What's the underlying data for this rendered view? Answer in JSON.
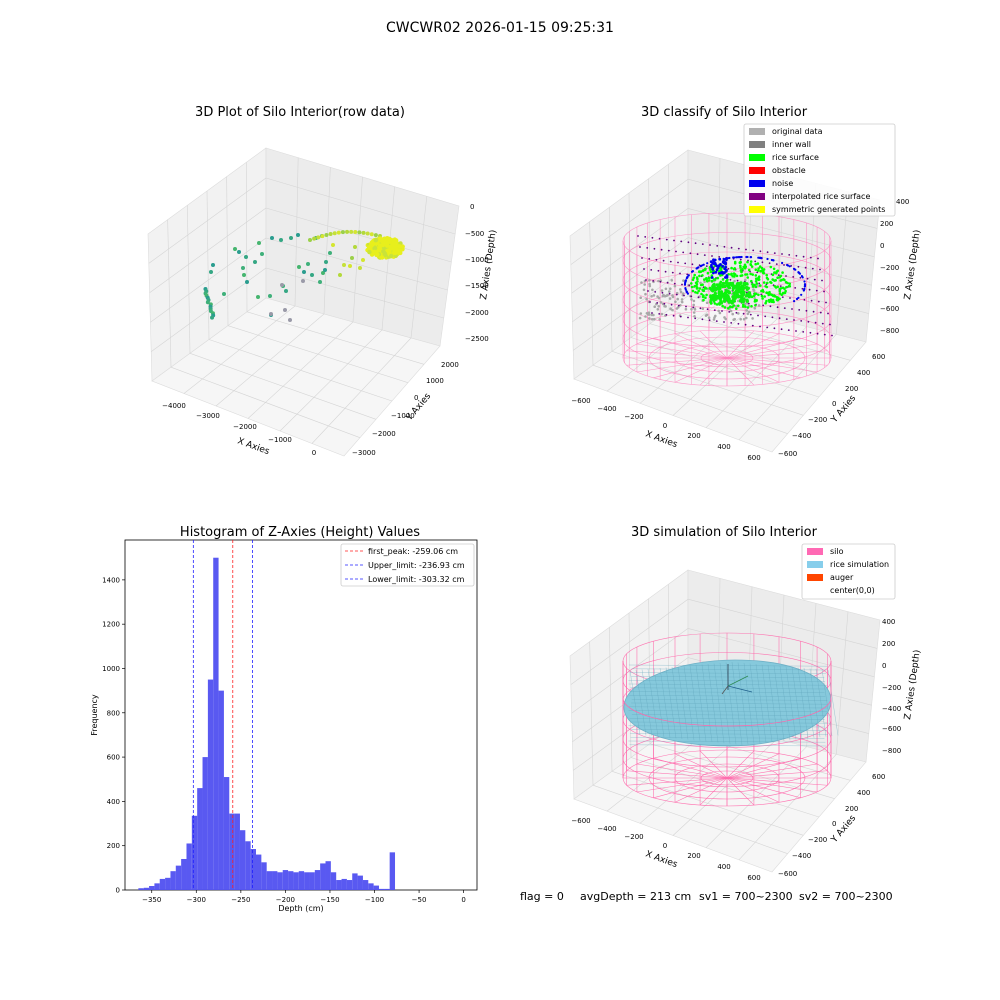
{
  "figure": {
    "suptitle": "CWCWR02 2026-01-15 09:25:31",
    "status_line": {
      "flag": "flag = 0",
      "avg_depth": "avgDepth = 213 cm",
      "sv1": "sv1 = 700~2300",
      "sv2": "sv2 = 700~2300"
    }
  },
  "colors": {
    "histogram_bar": "#5050f0",
    "first_peak_line": "#ff2020",
    "limit_line": "#2020ff",
    "silo_wire": "#ff66aa",
    "rice_surface": "#00ff00",
    "noise": "#0000ff",
    "rice_simulation": "#87cedd",
    "original_data": "#a8a8a8",
    "inner_wall": "#808080",
    "obstacle": "#ff0000",
    "interpolated": "#800080",
    "symmetric": "#ffff00",
    "auger": "#ff4500"
  },
  "chart_data": [
    {
      "type": "scatter",
      "subtype": "3d",
      "title": "3D Plot of Silo Interior(row data)",
      "xlabel": "X Axies",
      "ylabel": "Y Axies",
      "zlabel": "Z Axies (Depth)",
      "x_ticks": [
        "−4000",
        "−3000",
        "−2000",
        "−1000",
        "0"
      ],
      "y_ticks": [
        "2000",
        "1000",
        "0",
        "−1000",
        "−2000",
        "−3000"
      ],
      "z_ticks": [
        "0",
        "−500",
        "−1000",
        "−1500",
        "−2000",
        "−2500"
      ],
      "xlim": [
        -4500,
        500
      ],
      "ylim": [
        -3000,
        2000
      ],
      "zlim": [
        -2500,
        0
      ],
      "grid": true
    },
    {
      "type": "scatter",
      "subtype": "3d",
      "title": "3D classify of Silo Interior",
      "xlabel": "X Axies",
      "ylabel": "Y Axies",
      "zlabel": "Z Axies (Depth)",
      "x_ticks": [
        "−600",
        "−400",
        "−200",
        "0",
        "200",
        "400",
        "600"
      ],
      "y_ticks": [
        "600",
        "400",
        "200",
        "0",
        "−200",
        "−400",
        "−600"
      ],
      "z_ticks": [
        "200",
        "0",
        "−200",
        "−400",
        "−600",
        "−800"
      ],
      "z_top_tick": "400",
      "legend_position": "top-right",
      "legend": [
        {
          "label": "original data",
          "color": "#b0b0b0"
        },
        {
          "label": "inner wall",
          "color": "#808080"
        },
        {
          "label": "rice surface",
          "color": "#00ff00"
        },
        {
          "label": "obstacle",
          "color": "#ff0000"
        },
        {
          "label": "noise",
          "color": "#0000ee"
        },
        {
          "label": "interpolated rice surface",
          "color": "#800080"
        },
        {
          "label": "symmetric generated points",
          "color": "#ffff00"
        }
      ],
      "grid": true
    },
    {
      "type": "bar",
      "subtype": "histogram",
      "title": "Histogram of Z-Axies (Height) Values",
      "xlabel": "Depth (cm)",
      "ylabel": "Frequency",
      "xlim": [
        -380,
        15
      ],
      "ylim": [
        0,
        1580
      ],
      "x_ticks": [
        -350,
        -300,
        -250,
        -200,
        -150,
        -100,
        -50,
        0
      ],
      "y_ticks": [
        0,
        200,
        400,
        600,
        800,
        1000,
        1200,
        1400
      ],
      "bin_start": -365,
      "bin_width": 6,
      "values": [
        8,
        10,
        18,
        30,
        50,
        55,
        85,
        110,
        140,
        210,
        335,
        460,
        600,
        950,
        1500,
        900,
        510,
        345,
        345,
        270,
        220,
        185,
        160,
        125,
        85,
        85,
        80,
        90,
        85,
        80,
        85,
        80,
        80,
        90,
        120,
        130,
        80,
        45,
        50,
        45,
        75,
        65,
        45,
        30,
        20,
        5,
        5,
        170
      ],
      "vlines": [
        {
          "label": "first_peak: -259.06 cm",
          "x": -259.06,
          "color": "#ff2020"
        },
        {
          "label": "Upper_limit: -236.93 cm",
          "x": -236.93,
          "color": "#2020ff"
        },
        {
          "label": "Lower_limit: -303.32 cm",
          "x": -303.32,
          "color": "#2020ff"
        }
      ],
      "legend_position": "top-right"
    },
    {
      "type": "scatter",
      "subtype": "3d-surface",
      "title": "3D simulation of Silo Interior",
      "xlabel": "X Axies",
      "ylabel": "Y Axies",
      "zlabel": "Z Axies (Depth)",
      "x_ticks": [
        "−600",
        "−400",
        "−200",
        "0",
        "200",
        "400",
        "600"
      ],
      "y_ticks": [
        "600",
        "400",
        "200",
        "0",
        "−200",
        "−400",
        "−600"
      ],
      "z_ticks": [
        "400",
        "200",
        "0",
        "−200",
        "−400",
        "−600",
        "−800"
      ],
      "legend_position": "top-right",
      "legend": [
        {
          "label": "silo",
          "color": "#ff69b4"
        },
        {
          "label": "rice simulation",
          "color": "#87ceeb"
        },
        {
          "label": "auger",
          "color": "#ff4500"
        },
        {
          "label": "center(0,0)",
          "color": "#ffffff"
        }
      ],
      "grid": true
    }
  ]
}
